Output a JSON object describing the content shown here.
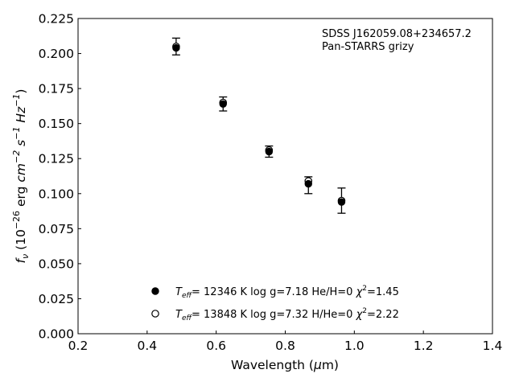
{
  "chart_data": {
    "type": "scatter",
    "xlabel": "Wavelength (μm)",
    "ylabel": "f_ν (10^−26 erg cm^−2 s^−1 Hz^−1)",
    "xlim": [
      0.2,
      1.4
    ],
    "ylim": [
      0.0,
      0.225
    ],
    "x_ticks": [
      "0.2",
      "0.4",
      "0.6",
      "0.8",
      "1.0",
      "1.2",
      "1.4"
    ],
    "y_ticks": [
      "0.000",
      "0.025",
      "0.050",
      "0.075",
      "0.100",
      "0.125",
      "0.150",
      "0.175",
      "0.200",
      "0.225"
    ],
    "grid": false,
    "annotation": [
      "SDSS J162059.08+234657.2",
      "Pan-STARRS grizy"
    ],
    "series": [
      {
        "name": "Teff= 12346 K  log g=7.18  He/H=0  χ2=1.45",
        "marker": "filled-circle",
        "x": [
          0.484,
          0.62,
          0.753,
          0.867,
          0.963
        ],
        "y": [
          0.204,
          0.164,
          0.13,
          0.107,
          0.094
        ]
      },
      {
        "name": "Teff= 13848 K  log g=7.32  H/He=0  χ2=2.22",
        "marker": "open-circle",
        "x": [
          0.484,
          0.62,
          0.753,
          0.867,
          0.963
        ],
        "y": [
          0.205,
          0.165,
          0.131,
          0.109,
          0.095
        ]
      },
      {
        "name": "",
        "marker": "errorbar",
        "x": [
          0.484,
          0.62,
          0.753,
          0.867,
          0.963
        ],
        "y": [
          0.205,
          0.164,
          0.13,
          0.106,
          0.095
        ],
        "yerr": [
          0.006,
          0.005,
          0.004,
          0.006,
          0.009
        ]
      }
    ],
    "legend": {
      "placement": "lower-center",
      "entries": [
        {
          "teff": "= 12346 K  log g=7.18  He/H=0  ",
          "chi_value": "=1.45"
        },
        {
          "teff": "= 13848 K  log g=7.32  H/He=0  ",
          "chi_value": "=2.22"
        }
      ]
    }
  }
}
